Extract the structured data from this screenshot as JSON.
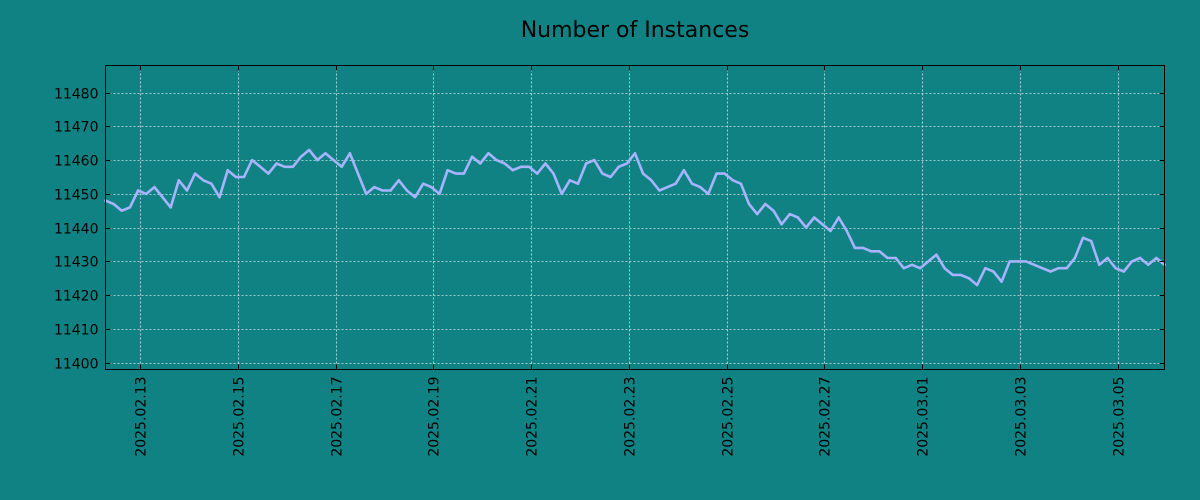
{
  "chart_data": {
    "type": "line",
    "title": "Number of Instances",
    "xlabel": "",
    "ylabel": "",
    "ylim": [
      11398,
      11488
    ],
    "xlim": [
      "2025-02-12T07:00",
      "2025-03-05T23:00"
    ],
    "yticks": [
      11400,
      11410,
      11420,
      11430,
      11440,
      11450,
      11460,
      11470,
      11480
    ],
    "xticks": [
      "2025.02.13",
      "2025.02.15",
      "2025.02.17",
      "2025.02.19",
      "2025.02.21",
      "2025.02.23",
      "2025.02.25",
      "2025.02.27",
      "2025.03.01",
      "2025.03.03",
      "2025.03.05"
    ],
    "grid": true,
    "x": [
      "2025-02-12T07:00",
      "2025-02-12T11:00",
      "2025-02-12T15:00",
      "2025-02-12T19:00",
      "2025-02-12T23:00",
      "2025-02-13T03:00",
      "2025-02-13T07:00",
      "2025-02-13T11:00",
      "2025-02-13T15:00",
      "2025-02-13T19:00",
      "2025-02-13T23:00",
      "2025-02-14T03:00",
      "2025-02-14T07:00",
      "2025-02-14T11:00",
      "2025-02-14T15:00",
      "2025-02-14T19:00",
      "2025-02-14T23:00",
      "2025-02-15T03:00",
      "2025-02-15T07:00",
      "2025-02-15T11:00",
      "2025-02-15T15:00",
      "2025-02-15T19:00",
      "2025-02-15T23:00",
      "2025-02-16T03:00",
      "2025-02-16T07:00",
      "2025-02-16T11:00",
      "2025-02-16T15:00",
      "2025-02-16T19:00",
      "2025-02-16T23:00",
      "2025-02-17T03:00",
      "2025-02-17T07:00",
      "2025-02-17T11:00",
      "2025-02-17T15:00",
      "2025-02-17T19:00",
      "2025-02-17T23:00",
      "2025-02-18T03:00",
      "2025-02-18T07:00",
      "2025-02-18T11:00",
      "2025-02-18T15:00",
      "2025-02-18T19:00",
      "2025-02-18T23:00",
      "2025-02-19T03:00",
      "2025-02-19T07:00",
      "2025-02-19T11:00",
      "2025-02-19T15:00",
      "2025-02-19T19:00",
      "2025-02-19T23:00",
      "2025-02-20T03:00",
      "2025-02-20T07:00",
      "2025-02-20T11:00",
      "2025-02-20T15:00",
      "2025-02-20T19:00",
      "2025-02-20T23:00",
      "2025-02-21T03:00",
      "2025-02-21T07:00",
      "2025-02-21T11:00",
      "2025-02-21T15:00",
      "2025-02-21T19:00",
      "2025-02-21T23:00",
      "2025-02-22T03:00",
      "2025-02-22T07:00",
      "2025-02-22T11:00",
      "2025-02-22T15:00",
      "2025-02-22T19:00",
      "2025-02-22T23:00",
      "2025-02-23T03:00",
      "2025-02-23T07:00",
      "2025-02-23T11:00",
      "2025-02-23T15:00",
      "2025-02-23T19:00",
      "2025-02-23T23:00",
      "2025-02-24T03:00",
      "2025-02-24T07:00",
      "2025-02-24T11:00",
      "2025-02-24T15:00",
      "2025-02-24T19:00",
      "2025-02-24T23:00",
      "2025-02-25T03:00",
      "2025-02-25T07:00",
      "2025-02-25T11:00",
      "2025-02-25T15:00",
      "2025-02-25T19:00",
      "2025-02-25T23:00",
      "2025-02-26T03:00",
      "2025-02-26T07:00",
      "2025-02-26T11:00",
      "2025-02-26T15:00",
      "2025-02-26T19:00",
      "2025-02-26T23:00",
      "2025-02-27T03:00",
      "2025-02-27T07:00",
      "2025-02-27T11:00",
      "2025-02-27T15:00",
      "2025-02-27T19:00",
      "2025-02-27T23:00",
      "2025-02-28T03:00",
      "2025-02-28T07:00",
      "2025-02-28T11:00",
      "2025-02-28T15:00",
      "2025-02-28T19:00",
      "2025-02-28T23:00",
      "2025-03-01T03:00",
      "2025-03-01T07:00",
      "2025-03-01T11:00",
      "2025-03-01T15:00",
      "2025-03-01T19:00",
      "2025-03-01T23:00",
      "2025-03-02T03:00",
      "2025-03-02T07:00",
      "2025-03-02T11:00",
      "2025-03-02T15:00",
      "2025-03-02T19:00",
      "2025-03-02T23:00",
      "2025-03-03T03:00",
      "2025-03-03T07:00",
      "2025-03-03T11:00",
      "2025-03-03T15:00",
      "2025-03-03T19:00",
      "2025-03-03T23:00",
      "2025-03-04T03:00",
      "2025-03-04T07:00",
      "2025-03-04T11:00",
      "2025-03-04T15:00",
      "2025-03-04T19:00",
      "2025-03-04T23:00",
      "2025-03-05T03:00",
      "2025-03-05T07:00",
      "2025-03-05T11:00",
      "2025-03-05T15:00",
      "2025-03-05T19:00",
      "2025-03-05T23:00"
    ],
    "series": [
      {
        "name": "",
        "color": "#a6b4ff",
        "values": [
          11448,
          11447,
          11445,
          11446,
          11451,
          11450,
          11452,
          11449,
          11446,
          11454,
          11451,
          11456,
          11454,
          11453,
          11449,
          11457,
          11455,
          11455,
          11460,
          11458,
          11456,
          11459,
          11458,
          11458,
          11461,
          11463,
          11460,
          11462,
          11460,
          11458,
          11462,
          11456,
          11450,
          11452,
          11451,
          11451,
          11454,
          11451,
          11449,
          11453,
          11452,
          11450,
          11457,
          11456,
          11456,
          11461,
          11459,
          11462,
          11460,
          11459,
          11457,
          11458,
          11458,
          11456,
          11459,
          11456,
          11450,
          11454,
          11453,
          11459,
          11460,
          11456,
          11455,
          11458,
          11459,
          11462,
          11456,
          11454,
          11451,
          11452,
          11453,
          11457,
          11453,
          11452,
          11450,
          11456,
          11456,
          11454,
          11453,
          11447,
          11444,
          11447,
          11445,
          11441,
          11444,
          11443,
          11440,
          11443,
          11441,
          11439,
          11443,
          11439,
          11434,
          11434,
          11433,
          11433,
          11431,
          11431,
          11428,
          11429,
          11428,
          11430,
          11432,
          11428,
          11426,
          11426,
          11425,
          11423,
          11428,
          11427,
          11424,
          11430,
          11430,
          11430,
          11429,
          11428,
          11427,
          11428,
          11428,
          11431,
          11437,
          11436,
          11429,
          11431,
          11428,
          11427,
          11430,
          11431,
          11429,
          11431,
          11429
        ]
      }
    ]
  },
  "colors": {
    "background": "#108283",
    "line": "#a6b4ff",
    "grid": "#cfe8e8",
    "axis": "#000000"
  }
}
